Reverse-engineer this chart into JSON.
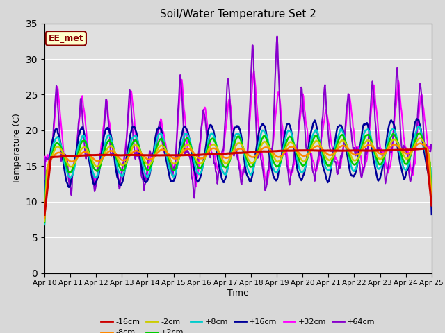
{
  "title": "Soil/Water Temperature Set 2",
  "xlabel": "Time",
  "ylabel": "Temperature (C)",
  "annotation": "EE_met",
  "ylim": [
    0,
    35
  ],
  "yticks": [
    0,
    5,
    10,
    15,
    20,
    25,
    30,
    35
  ],
  "background_color": "#d8d8d8",
  "plot_bg_color": "#e0e0e0",
  "series": {
    "-16cm": {
      "color": "#cc0000",
      "lw": 2.2,
      "zorder": 6
    },
    "-8cm": {
      "color": "#ff8800",
      "lw": 1.8,
      "zorder": 5
    },
    "-2cm": {
      "color": "#cccc00",
      "lw": 1.8,
      "zorder": 5
    },
    "+2cm": {
      "color": "#00cc00",
      "lw": 1.8,
      "zorder": 5
    },
    "+8cm": {
      "color": "#00cccc",
      "lw": 1.8,
      "zorder": 5
    },
    "+16cm": {
      "color": "#000099",
      "lw": 1.8,
      "zorder": 5
    },
    "+32cm": {
      "color": "#ff00ff",
      "lw": 1.5,
      "zorder": 3
    },
    "+64cm": {
      "color": "#8800cc",
      "lw": 1.5,
      "zorder": 4
    }
  },
  "xtick_labels": [
    "Apr 10",
    "Apr 11",
    "Apr 12",
    "Apr 13",
    "Apr 14",
    "Apr 15",
    "Apr 16",
    "Apr 17",
    "Apr 18",
    "Apr 19",
    "Apr 20",
    "Apr 21",
    "Apr 22",
    "Apr 23",
    "Apr 24",
    "Apr 25"
  ],
  "n_days": 15,
  "pts_per_day": 48
}
